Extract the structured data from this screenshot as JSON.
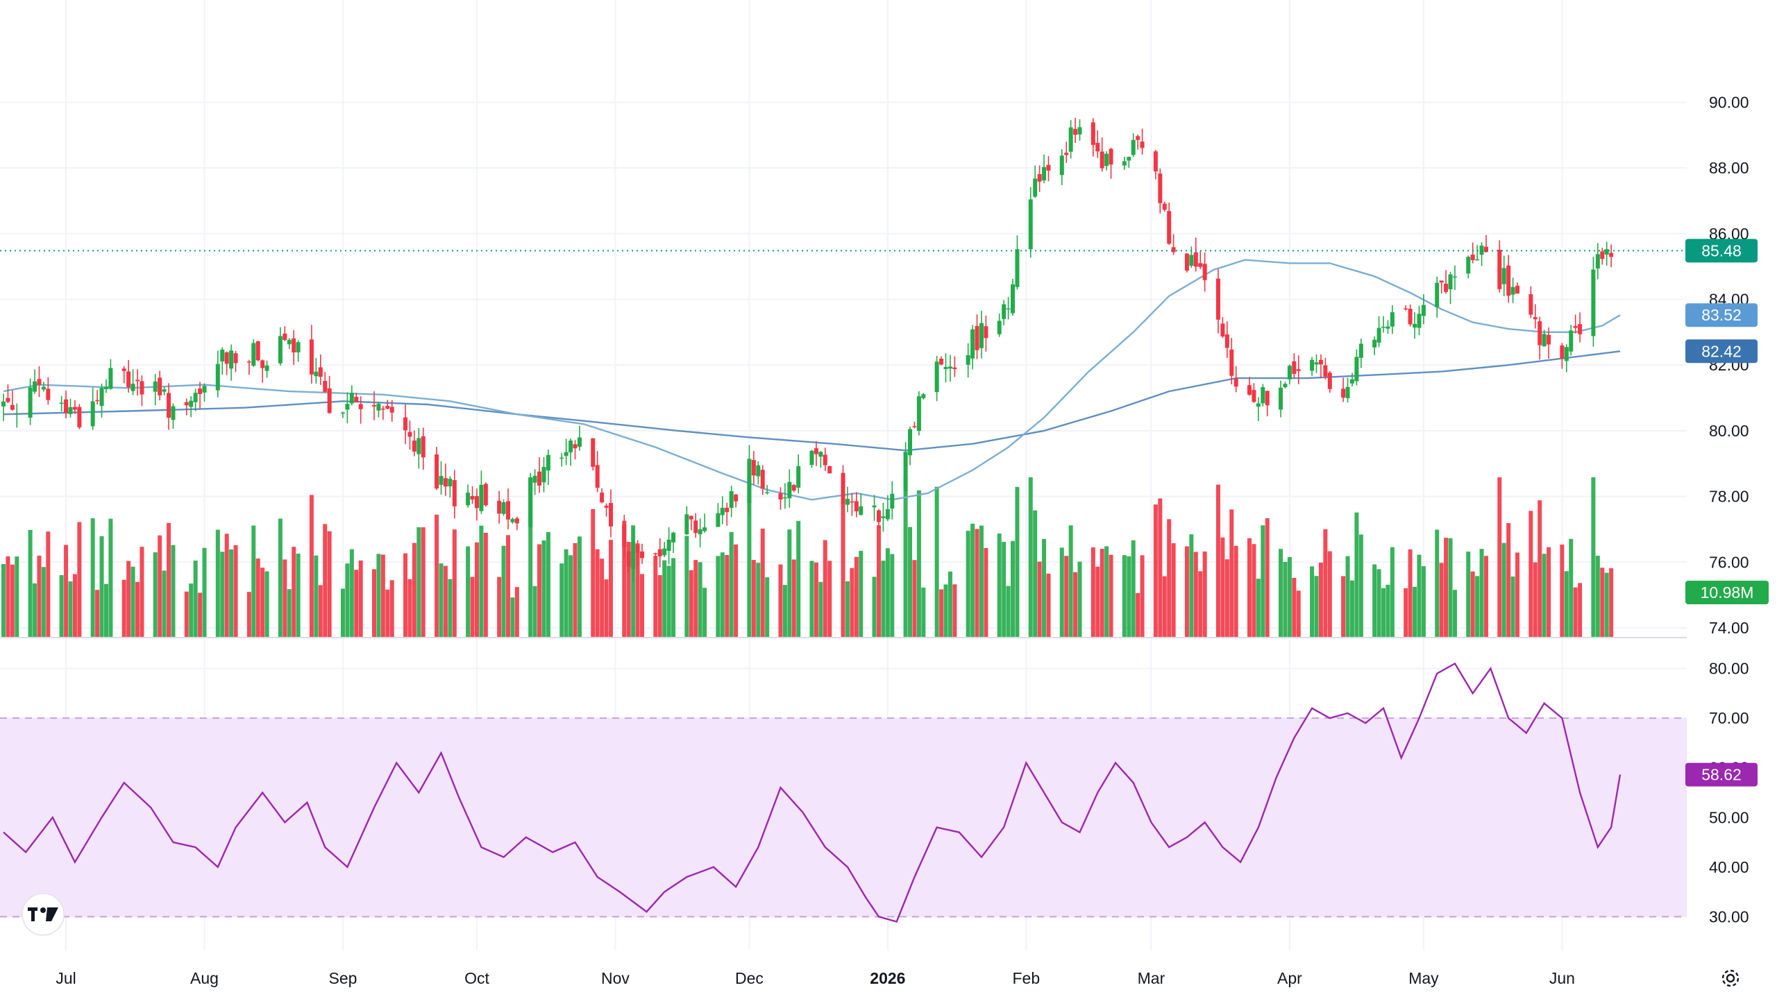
{
  "chart_data": [
    {
      "type": "candlestick",
      "title": "",
      "x_range": [
        "2025-06-17",
        "2026-06-14"
      ],
      "x_ticks": [
        {
          "label": "Jul",
          "date": "2025-07-01",
          "bold": false
        },
        {
          "label": "Aug",
          "date": "2025-08-01",
          "bold": false
        },
        {
          "label": "Sep",
          "date": "2025-09-01",
          "bold": false
        },
        {
          "label": "Oct",
          "date": "2025-10-01",
          "bold": false
        },
        {
          "label": "Nov",
          "date": "2025-11-01",
          "bold": false
        },
        {
          "label": "Dec",
          "date": "2025-12-01",
          "bold": false
        },
        {
          "label": "2026",
          "date": "2026-01-01",
          "bold": true
        },
        {
          "label": "Feb",
          "date": "2026-02-01",
          "bold": false
        },
        {
          "label": "Mar",
          "date": "2026-03-01",
          "bold": false
        },
        {
          "label": "Apr",
          "date": "2026-04-01",
          "bold": false
        },
        {
          "label": "May",
          "date": "2026-05-01",
          "bold": false
        },
        {
          "label": "Jun",
          "date": "2026-06-01",
          "bold": false
        }
      ],
      "y_ticks": [
        "90.00",
        "88.00",
        "86.00",
        "84.00",
        "82.00",
        "80.00",
        "78.00",
        "76.00",
        "74.00"
      ],
      "ylim": [
        74,
        91
      ],
      "grid": true,
      "last_price": {
        "value": 85.48,
        "label": "85.48",
        "color": "#089981"
      },
      "sma_short": {
        "label": "83.52",
        "color": "#7aaed3",
        "tag_color": "#5b9bd5",
        "points": [
          [
            "2025-06-17",
            81.2
          ],
          [
            "2025-06-25",
            81.4
          ],
          [
            "2025-07-15",
            81.3
          ],
          [
            "2025-08-01",
            81.4
          ],
          [
            "2025-08-20",
            81.2
          ],
          [
            "2025-09-10",
            81.1
          ],
          [
            "2025-09-25",
            80.9
          ],
          [
            "2025-10-10",
            80.5
          ],
          [
            "2025-10-25",
            80.2
          ],
          [
            "2025-11-10",
            79.5
          ],
          [
            "2025-11-25",
            78.7
          ],
          [
            "2025-12-05",
            78.2
          ],
          [
            "2025-12-15",
            77.9
          ],
          [
            "2025-12-25",
            78.1
          ],
          [
            "2026-01-02",
            77.9
          ],
          [
            "2026-01-10",
            78.1
          ],
          [
            "2026-01-20",
            78.8
          ],
          [
            "2026-01-28",
            79.5
          ],
          [
            "2026-02-05",
            80.4
          ],
          [
            "2026-02-15",
            81.8
          ],
          [
            "2026-02-25",
            83.0
          ],
          [
            "2026-03-05",
            84.1
          ],
          [
            "2026-03-15",
            84.9
          ],
          [
            "2026-03-22",
            85.2
          ],
          [
            "2026-04-01",
            85.1
          ],
          [
            "2026-04-10",
            85.1
          ],
          [
            "2026-04-20",
            84.7
          ],
          [
            "2026-04-28",
            84.2
          ],
          [
            "2026-05-05",
            83.7
          ],
          [
            "2026-05-12",
            83.3
          ],
          [
            "2026-05-20",
            83.1
          ],
          [
            "2026-05-28",
            83.0
          ],
          [
            "2026-06-04",
            83.0
          ],
          [
            "2026-06-10",
            83.2
          ],
          [
            "2026-06-14",
            83.52
          ]
        ]
      },
      "sma_long": {
        "label": "82.42",
        "color": "#5f8fc0",
        "tag_color": "#3a74b0",
        "points": [
          [
            "2025-06-17",
            80.5
          ],
          [
            "2025-07-15",
            80.6
          ],
          [
            "2025-08-10",
            80.7
          ],
          [
            "2025-09-01",
            80.9
          ],
          [
            "2025-09-20",
            80.8
          ],
          [
            "2025-10-10",
            80.5
          ],
          [
            "2025-10-25",
            80.3
          ],
          [
            "2025-11-15",
            80.0
          ],
          [
            "2025-12-01",
            79.8
          ],
          [
            "2025-12-20",
            79.6
          ],
          [
            "2026-01-05",
            79.4
          ],
          [
            "2026-01-20",
            79.6
          ],
          [
            "2026-02-05",
            80.0
          ],
          [
            "2026-02-20",
            80.6
          ],
          [
            "2026-03-05",
            81.2
          ],
          [
            "2026-03-20",
            81.6
          ],
          [
            "2026-04-05",
            81.6
          ],
          [
            "2026-04-20",
            81.7
          ],
          [
            "2026-05-05",
            81.8
          ],
          [
            "2026-05-20",
            82.0
          ],
          [
            "2026-06-01",
            82.2
          ],
          [
            "2026-06-14",
            82.42
          ]
        ]
      },
      "price_path": [
        [
          "2025-06-17",
          80.8
        ],
        [
          "2025-06-25",
          81.2
        ],
        [
          "2025-07-05",
          80.4
        ],
        [
          "2025-07-12",
          81.8
        ],
        [
          "2025-07-20",
          81.2
        ],
        [
          "2025-07-28",
          80.4
        ],
        [
          "2025-08-06",
          82.4
        ],
        [
          "2025-08-13",
          82.2
        ],
        [
          "2025-08-21",
          82.6
        ],
        [
          "2025-08-28",
          81.0
        ],
        [
          "2025-09-06",
          80.8
        ],
        [
          "2025-09-15",
          80.2
        ],
        [
          "2025-09-22",
          78.2
        ],
        [
          "2025-10-01",
          78.0
        ],
        [
          "2025-10-10",
          77.6
        ],
        [
          "2025-10-18",
          79.2
        ],
        [
          "2025-10-25",
          79.8
        ],
        [
          "2025-11-01",
          76.5
        ],
        [
          "2025-11-08",
          76.0
        ],
        [
          "2025-11-15",
          77.4
        ],
        [
          "2025-11-23",
          77.0
        ],
        [
          "2025-12-01",
          79.0
        ],
        [
          "2025-12-08",
          78.0
        ],
        [
          "2025-12-16",
          79.6
        ],
        [
          "2025-12-23",
          77.8
        ],
        [
          "2026-01-01",
          77.2
        ],
        [
          "2026-01-04",
          79.0
        ],
        [
          "2026-01-10",
          81.8
        ],
        [
          "2026-01-18",
          82.4
        ],
        [
          "2026-01-28",
          84.0
        ],
        [
          "2026-02-03",
          87.8
        ],
        [
          "2026-02-12",
          89.0
        ],
        [
          "2026-02-20",
          88.0
        ],
        [
          "2026-02-28",
          88.8
        ],
        [
          "2026-03-05",
          86.0
        ],
        [
          "2026-03-12",
          84.8
        ],
        [
          "2026-03-20",
          81.2
        ],
        [
          "2026-03-28",
          81.0
        ],
        [
          "2026-04-05",
          82.2
        ],
        [
          "2026-04-12",
          81.2
        ],
        [
          "2026-04-20",
          82.8
        ],
        [
          "2026-04-28",
          83.6
        ],
        [
          "2026-05-06",
          84.4
        ],
        [
          "2026-05-14",
          85.4
        ],
        [
          "2026-05-22",
          84.0
        ],
        [
          "2026-05-30",
          82.0
        ],
        [
          "2026-06-05",
          83.2
        ],
        [
          "2026-06-10",
          85.4
        ],
        [
          "2026-06-14",
          85.48
        ]
      ],
      "volume": {
        "label": "10.98M",
        "tag_color": "#22ab4a",
        "up_color": "#22ab4a",
        "down_color": "#f23645"
      }
    },
    {
      "type": "line",
      "title": "",
      "y_ticks": [
        "80.00",
        "70.00",
        "60.00",
        "50.00",
        "40.00",
        "30.00"
      ],
      "ylim": [
        26,
        84
      ],
      "band": [
        30,
        70
      ],
      "color": "#9c27b0",
      "last_label": "58.62",
      "points": [
        [
          "2025-06-17",
          47
        ],
        [
          "2025-06-22",
          43
        ],
        [
          "2025-06-28",
          50
        ],
        [
          "2025-07-03",
          41
        ],
        [
          "2025-07-09",
          50
        ],
        [
          "2025-07-14",
          57
        ],
        [
          "2025-07-20",
          52
        ],
        [
          "2025-07-25",
          45
        ],
        [
          "2025-07-30",
          44
        ],
        [
          "2025-08-04",
          40
        ],
        [
          "2025-08-08",
          48
        ],
        [
          "2025-08-14",
          55
        ],
        [
          "2025-08-19",
          49
        ],
        [
          "2025-08-24",
          53
        ],
        [
          "2025-08-28",
          44
        ],
        [
          "2025-09-02",
          40
        ],
        [
          "2025-09-08",
          52
        ],
        [
          "2025-09-13",
          61
        ],
        [
          "2025-09-18",
          55
        ],
        [
          "2025-09-23",
          63
        ],
        [
          "2025-09-27",
          54
        ],
        [
          "2025-10-02",
          44
        ],
        [
          "2025-10-07",
          42
        ],
        [
          "2025-10-12",
          46
        ],
        [
          "2025-10-18",
          43
        ],
        [
          "2025-10-23",
          45
        ],
        [
          "2025-10-28",
          38
        ],
        [
          "2025-11-02",
          35
        ],
        [
          "2025-11-08",
          31
        ],
        [
          "2025-11-12",
          35
        ],
        [
          "2025-11-17",
          38
        ],
        [
          "2025-11-23",
          40
        ],
        [
          "2025-11-28",
          36
        ],
        [
          "2025-12-03",
          44
        ],
        [
          "2025-12-08",
          56
        ],
        [
          "2025-12-13",
          51
        ],
        [
          "2025-12-18",
          44
        ],
        [
          "2025-12-23",
          40
        ],
        [
          "2025-12-27",
          34
        ],
        [
          "2025-12-30",
          30
        ],
        [
          "2026-01-03",
          29
        ],
        [
          "2026-01-07",
          38
        ],
        [
          "2026-01-12",
          48
        ],
        [
          "2026-01-17",
          47
        ],
        [
          "2026-01-22",
          42
        ],
        [
          "2026-01-27",
          48
        ],
        [
          "2026-02-01",
          61
        ],
        [
          "2026-02-05",
          55
        ],
        [
          "2026-02-09",
          49
        ],
        [
          "2026-02-13",
          47
        ],
        [
          "2026-02-17",
          55
        ],
        [
          "2026-02-21",
          61
        ],
        [
          "2026-02-25",
          57
        ],
        [
          "2026-03-01",
          49
        ],
        [
          "2026-03-05",
          44
        ],
        [
          "2026-03-09",
          46
        ],
        [
          "2026-03-13",
          49
        ],
        [
          "2026-03-17",
          44
        ],
        [
          "2026-03-21",
          41
        ],
        [
          "2026-03-25",
          48
        ],
        [
          "2026-03-29",
          58
        ],
        [
          "2026-04-02",
          66
        ],
        [
          "2026-04-06",
          72
        ],
        [
          "2026-04-10",
          70
        ],
        [
          "2026-04-14",
          71
        ],
        [
          "2026-04-18",
          69
        ],
        [
          "2026-04-22",
          72
        ],
        [
          "2026-04-26",
          62
        ],
        [
          "2026-04-30",
          70
        ],
        [
          "2026-05-04",
          79
        ],
        [
          "2026-05-08",
          81
        ],
        [
          "2026-05-12",
          75
        ],
        [
          "2026-05-16",
          80
        ],
        [
          "2026-05-20",
          70
        ],
        [
          "2026-05-24",
          67
        ],
        [
          "2026-05-28",
          73
        ],
        [
          "2026-06-01",
          70
        ],
        [
          "2026-06-05",
          55
        ],
        [
          "2026-06-09",
          44
        ],
        [
          "2026-06-12",
          48
        ],
        [
          "2026-06-14",
          58.62
        ]
      ]
    }
  ]
}
